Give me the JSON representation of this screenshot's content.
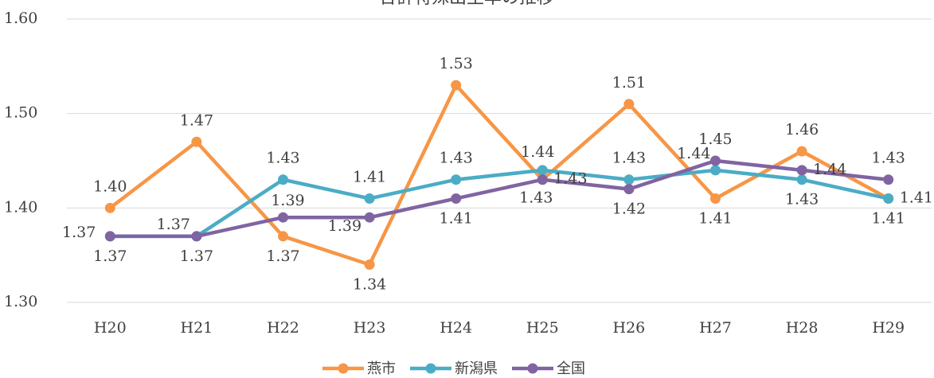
{
  "chart_data": {
    "type": "line",
    "title": "合計特殊出生率の推移",
    "categories": [
      "H20",
      "H21",
      "H22",
      "H23",
      "H24",
      "H25",
      "H26",
      "H27",
      "H28",
      "H29"
    ],
    "series": [
      {
        "name": "燕市",
        "color": "#f79646",
        "values": [
          1.4,
          1.47,
          1.37,
          1.34,
          1.53,
          1.43,
          1.51,
          1.41,
          1.46,
          1.41
        ],
        "value_labels": [
          "1.40",
          "1.47",
          "1.37",
          "1.34",
          "1.53",
          "1.43",
          "1.51",
          "1.41",
          "1.46",
          "1.41"
        ]
      },
      {
        "name": "新潟県",
        "color": "#4bacc6",
        "values": [
          1.37,
          1.37,
          1.43,
          1.41,
          1.43,
          1.44,
          1.43,
          1.44,
          1.43,
          1.41
        ],
        "value_labels": [
          "1.37",
          "1.37",
          "1.43",
          "1.41",
          "1.43",
          "1.44",
          "1.43",
          "1.44",
          "1.43",
          "1.41"
        ]
      },
      {
        "name": "全国",
        "color": "#8064a2",
        "values": [
          1.37,
          1.37,
          1.39,
          1.39,
          1.41,
          1.43,
          1.42,
          1.45,
          1.44,
          1.43
        ],
        "value_labels": [
          "1.37",
          "1.37",
          "1.39",
          "1.39",
          "1.41",
          "1.43",
          "1.42",
          "1.45",
          "1.44",
          "1.43"
        ]
      }
    ],
    "ylim": [
      1.3,
      1.6
    ],
    "yticks": [
      {
        "value": 1.3,
        "label": "1.30"
      },
      {
        "value": 1.4,
        "label": "1.40"
      },
      {
        "value": 1.5,
        "label": "1.50"
      },
      {
        "value": 1.6,
        "label": "1.60"
      }
    ],
    "grid": true,
    "legend": "bottom"
  }
}
